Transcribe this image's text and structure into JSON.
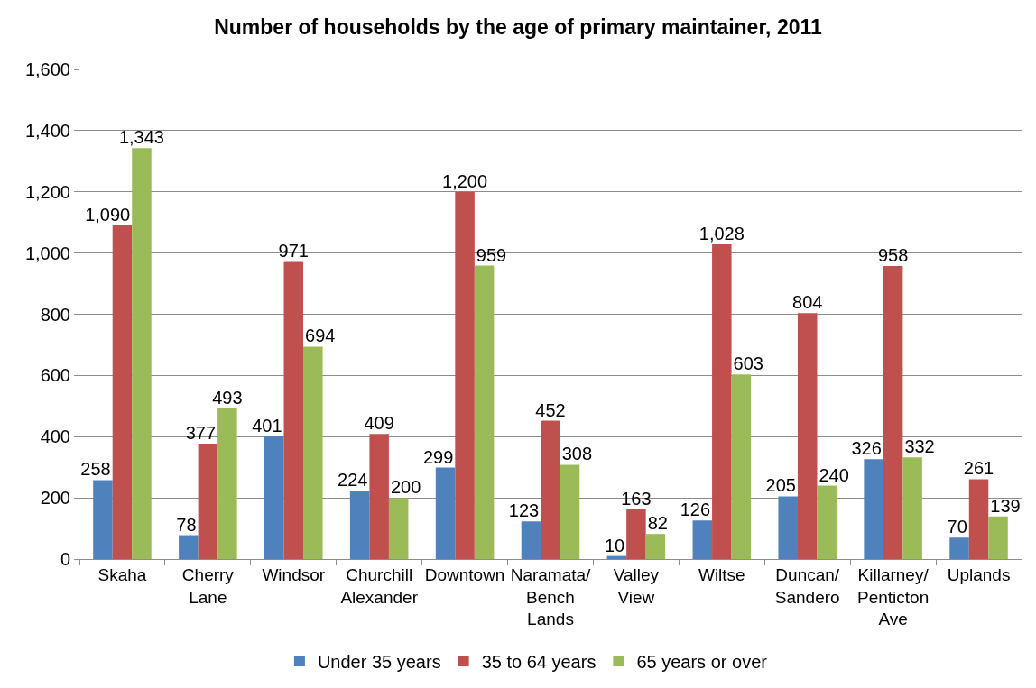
{
  "chart_data": {
    "type": "bar",
    "title": "Number of households by the age of primary maintainer, 2011",
    "categories": [
      "Skaha",
      "Cherry Lane",
      "Windsor",
      "Churchill Alexander",
      "Downtown",
      "Naramata/ Bench Lands",
      "Valley View",
      "Wiltse",
      "Duncan/ Sandero",
      "Killarney/ Penticton Ave",
      "Uplands"
    ],
    "series": [
      {
        "name": "Under 35 years",
        "color": "#4f81bd",
        "values": [
          258,
          78,
          401,
          224,
          299,
          123,
          10,
          126,
          205,
          326,
          70
        ],
        "value_labels": [
          "258",
          "78",
          "401",
          "224",
          "299",
          "123",
          "10",
          "126",
          "205",
          "326",
          "70"
        ]
      },
      {
        "name": "35 to 64 years",
        "color": "#c0504d",
        "values": [
          1090,
          377,
          971,
          409,
          1200,
          452,
          163,
          1028,
          804,
          958,
          261
        ],
        "value_labels": [
          "1,090",
          "377",
          "971",
          "409",
          "1,200",
          "452",
          "163",
          "1,028",
          "804",
          "958",
          "261"
        ]
      },
      {
        "name": "65 years or over",
        "color": "#9bbb59",
        "values": [
          1343,
          493,
          694,
          200,
          959,
          308,
          82,
          603,
          240,
          332,
          139
        ],
        "value_labels": [
          "1,343",
          "493",
          "694",
          "200",
          "959",
          "308",
          "82",
          "603",
          "240",
          "332",
          "139"
        ]
      }
    ],
    "ylim": [
      0,
      1600
    ],
    "yticks": [
      0,
      200,
      400,
      600,
      800,
      {
        "value": 1000,
        "label": "1,000"
      },
      {
        "value": 1200,
        "label": "1,200"
      },
      {
        "value": 1400,
        "label": "1,400"
      },
      {
        "value": 1600,
        "label": "1,600"
      }
    ],
    "grid": "y",
    "legend": "bottom"
  }
}
